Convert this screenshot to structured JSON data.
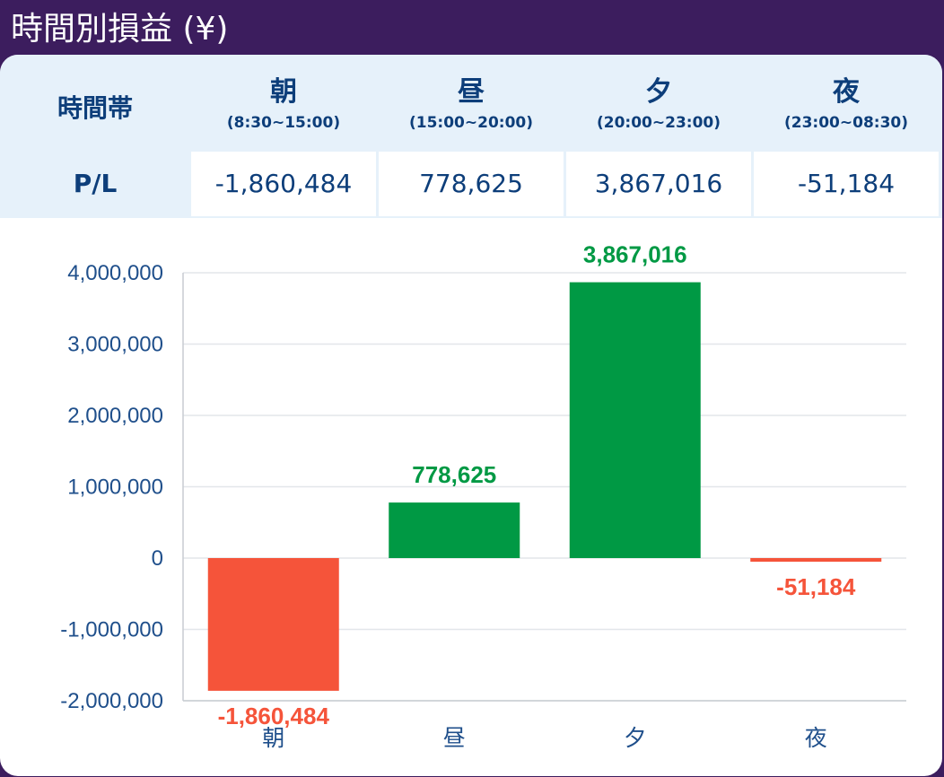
{
  "title": "時間別損益 (¥)",
  "table": {
    "header_label": "時間帯",
    "row_label": "P/L",
    "columns": [
      {
        "name": "朝",
        "range": "(8:30~15:00)",
        "value": "-1,860,484"
      },
      {
        "name": "昼",
        "range": "(15:00~20:00)",
        "value": "778,625"
      },
      {
        "name": "夕",
        "range": "(20:00~23:00)",
        "value": "3,867,016"
      },
      {
        "name": "夜",
        "range": "(23:00~08:30)",
        "value": "-51,184"
      }
    ]
  },
  "colors": {
    "positive": "#009944",
    "negative": "#f5543a",
    "header_bg": "#3c1d5e",
    "table_bg": "#e6f1fa",
    "text": "#0d3e7a",
    "grid": "#e3e6ea",
    "axis": "#c8ccd2"
  },
  "chart_data": {
    "type": "bar",
    "title": "",
    "xlabel": "",
    "ylabel": "",
    "categories": [
      "朝",
      "昼",
      "夕",
      "夜"
    ],
    "values": [
      -1860484,
      778625,
      3867016,
      -51184
    ],
    "value_labels": [
      "-1,860,484",
      "778,625",
      "3,867,016",
      "-51,184"
    ],
    "ylim": [
      -2000000,
      4000000
    ],
    "yticks": [
      4000000,
      3000000,
      2000000,
      1000000,
      0,
      -1000000,
      -2000000
    ],
    "ytick_labels": [
      "4,000,000",
      "3,000,000",
      "2,000,000",
      "1,000,000",
      "0",
      "-1,000,000",
      "-2,000,000"
    ],
    "grid": true,
    "legend": "none"
  }
}
